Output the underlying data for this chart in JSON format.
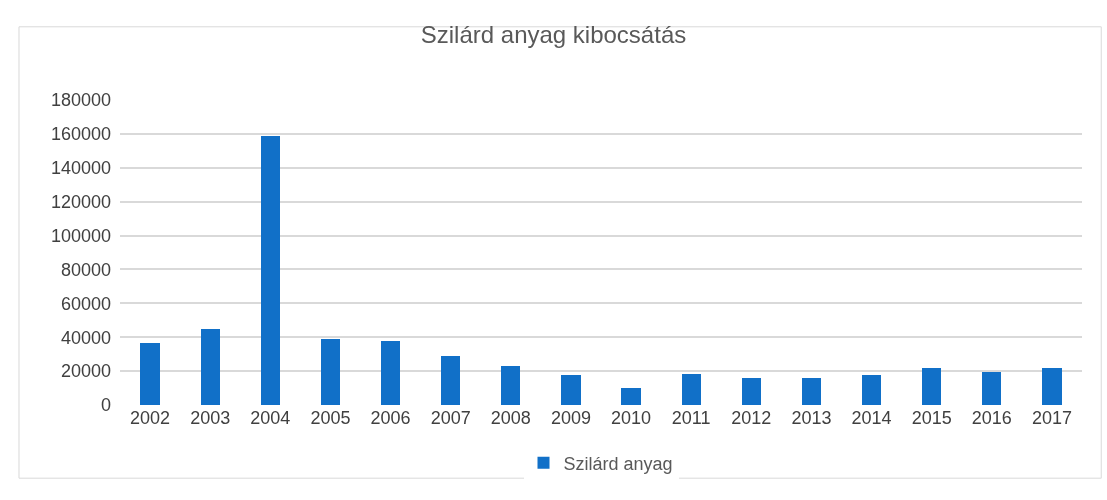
{
  "chart_data": {
    "type": "bar",
    "title": "Szilárd anyag kibocsátás",
    "categories": [
      "2002",
      "2003",
      "2004",
      "2005",
      "2006",
      "2007",
      "2008",
      "2009",
      "2010",
      "2011",
      "2012",
      "2013",
      "2014",
      "2015",
      "2016",
      "2017"
    ],
    "series": [
      {
        "name": "Szilárd anyag",
        "color": "#1170c8",
        "values": [
          36600,
          44600,
          159000,
          39200,
          37800,
          28900,
          22900,
          17500,
          10300,
          18100,
          16100,
          15900,
          17700,
          22100,
          19700,
          21700
        ]
      }
    ],
    "ylim": [
      0,
      180000
    ],
    "yticks": [
      0,
      20000,
      40000,
      60000,
      80000,
      100000,
      120000,
      140000,
      160000,
      180000
    ],
    "grid": "y",
    "legend": "bottom"
  }
}
